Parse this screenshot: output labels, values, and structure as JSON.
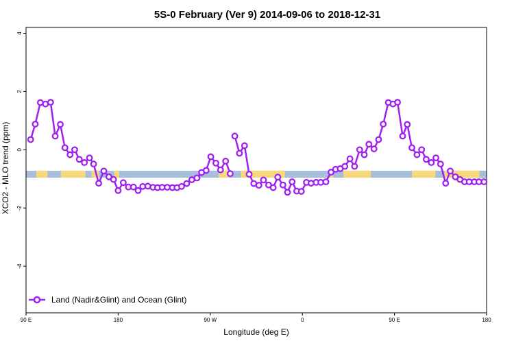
{
  "chart_data": {
    "type": "line",
    "title": "5S-0 February (Ver 9)   2014-09-06 to 2018-12-31",
    "xlabel": "Longitude (deg E)",
    "ylabel": "XCO2 - MLO trend (ppm)",
    "xlim": [
      90,
      540
    ],
    "ylim": [
      -5.6,
      4.2
    ],
    "x_ticks": [
      {
        "value": 90,
        "label": "90 E"
      },
      {
        "value": 180,
        "label": "180"
      },
      {
        "value": 270,
        "label": "90 W"
      },
      {
        "value": 360,
        "label": "0"
      },
      {
        "value": 450,
        "label": "90 E"
      },
      {
        "value": 540,
        "label": "180"
      }
    ],
    "y_ticks": [
      {
        "value": -4,
        "label": "-4"
      },
      {
        "value": -2,
        "label": "-2"
      },
      {
        "value": 0,
        "label": "0"
      },
      {
        "value": 2,
        "label": "2"
      },
      {
        "value": 4,
        "label": "4"
      }
    ],
    "legend": {
      "label": "Land (Nadir&Glint) and Ocean (Glint)",
      "position": "bottom-left"
    },
    "colors": {
      "series": "#a020f0",
      "ocean": "#a6bddb",
      "land": "#f7d87c"
    },
    "band": {
      "y_min": -0.96,
      "y_max": -0.72
    },
    "land_segments": [
      [
        100,
        111
      ],
      [
        124,
        148
      ],
      [
        154,
        161
      ],
      [
        176,
        181
      ],
      [
        278,
        288
      ],
      [
        300,
        343
      ],
      [
        387,
        390
      ],
      [
        400,
        427
      ],
      [
        467,
        490
      ],
      [
        499,
        533
      ]
    ],
    "series": [
      {
        "name": "Land (Nadir&Glint) and Ocean (Glint)",
        "segments": [
          {
            "x": [
              94.5,
              99,
              104,
              109,
              114,
              118.5,
              123.5,
              128,
              133,
              137.5,
              142,
              147,
              152,
              156,
              161,
              166,
              171,
              175.5,
              180,
              185,
              190,
              195,
              199.5,
              204,
              209,
              214,
              218.5,
              223,
              228,
              233,
              237.5,
              242,
              247,
              252,
              257,
              261.5,
              266,
              270.5,
              275.5,
              280,
              285,
              289.5
            ],
            "y": [
              0.35,
              0.88,
              1.62,
              1.57,
              1.63,
              0.47,
              0.87,
              0.07,
              -0.17,
              0.0,
              -0.33,
              -0.44,
              -0.28,
              -0.49,
              -1.15,
              -0.73,
              -0.93,
              -1.02,
              -1.4,
              -1.13,
              -1.28,
              -1.28,
              -1.4,
              -1.26,
              -1.25,
              -1.29,
              -1.3,
              -1.29,
              -1.29,
              -1.3,
              -1.3,
              -1.26,
              -1.16,
              -1.03,
              -0.97,
              -0.78,
              -0.71,
              -0.24,
              -0.46,
              -0.69,
              -0.39,
              -0.82
            ]
          },
          {
            "x": [
              294,
              298.5,
              303.5,
              308,
              312.5,
              317.5,
              322,
              327,
              331.5,
              336,
              341,
              345.5,
              350,
              354.5,
              359,
              364,
              368.5,
              373.5,
              378
            ],
            "y": [
              0.47,
              -0.12,
              0.14,
              -0.84,
              -1.16,
              -1.22,
              -1.04,
              -1.21,
              -1.3,
              -0.94,
              -1.21,
              -1.46,
              -1.1,
              -1.42,
              -1.43,
              -1.12,
              -1.15,
              -1.12,
              -1.12
            ]
          },
          {
            "x": [
              383,
              388,
              392.5,
              397,
              401.5,
              406.5,
              411,
              416,
              420.5,
              425,
              430,
              434.5,
              439,
              444,
              448.5,
              453,
              458,
              462.5,
              467,
              472,
              476.5,
              481,
              486,
              490.5,
              495,
              500,
              504.5,
              509.5,
              514,
              518.5,
              523,
              528,
              532.5,
              537.5
            ],
            "y": [
              -1.1,
              -0.77,
              -0.67,
              -0.65,
              -0.57,
              -0.31,
              -0.57,
              0.0,
              -0.17,
              0.19,
              0.03,
              0.35,
              0.88,
              1.62,
              1.57,
              1.63,
              0.47,
              0.87,
              0.07,
              -0.17,
              0.0,
              -0.33,
              -0.44,
              -0.28,
              -0.49,
              -1.15,
              -0.73,
              -0.93,
              -1.02,
              -1.1,
              -1.1,
              -1.1,
              -1.1,
              -1.1
            ]
          }
        ]
      }
    ]
  }
}
